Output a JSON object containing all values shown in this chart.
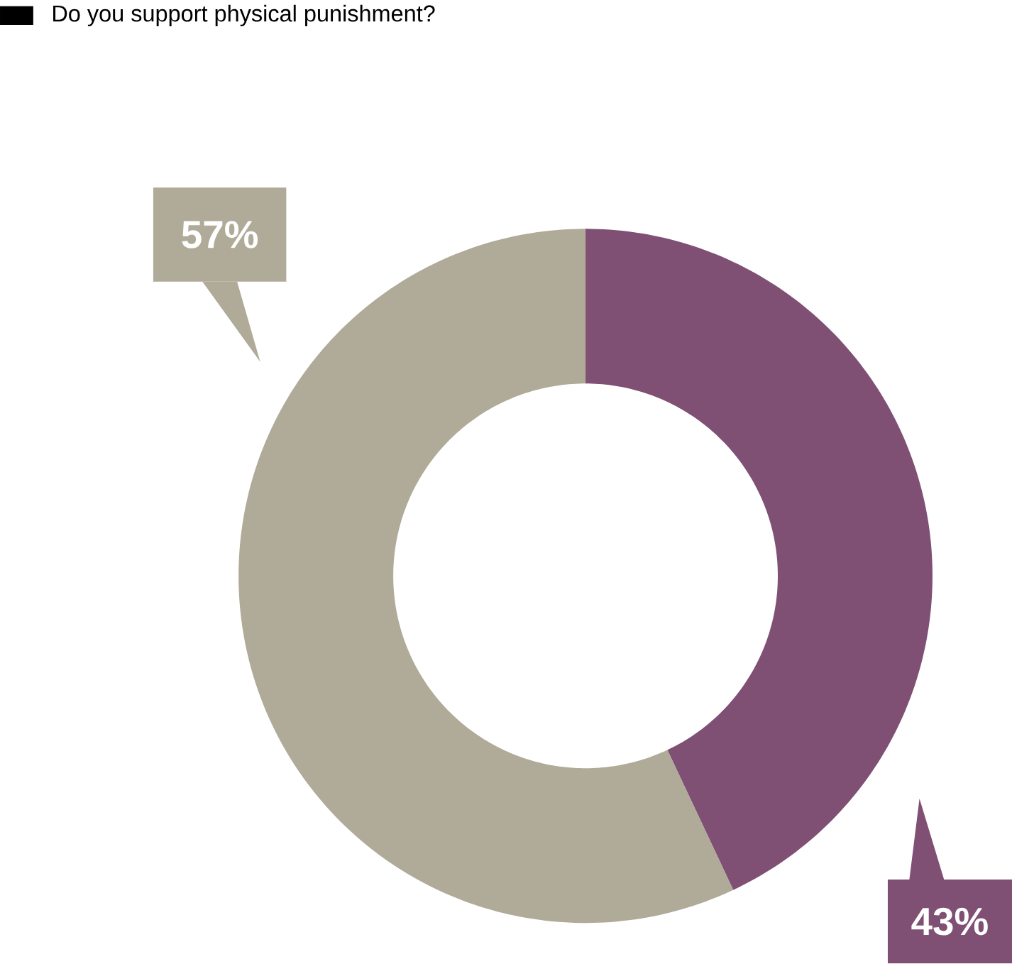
{
  "chart_data": {
    "type": "donut",
    "title": "Do you support physical punishment?",
    "categories": [
      null,
      null
    ],
    "values": [
      43,
      57
    ],
    "colors": [
      "#7f4f74",
      "#b0aa98"
    ],
    "value_labels": [
      "43%",
      "57%"
    ]
  }
}
